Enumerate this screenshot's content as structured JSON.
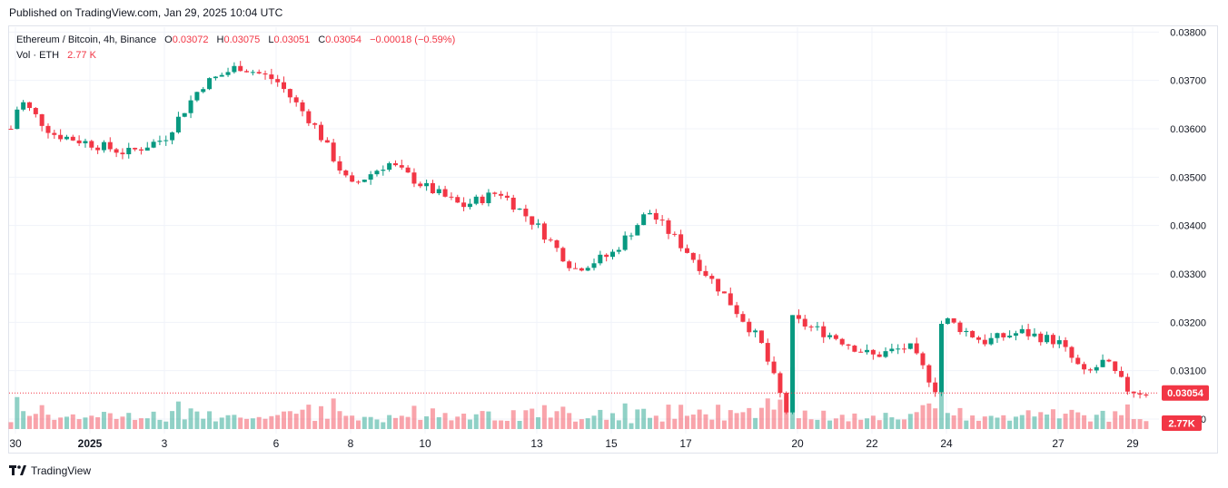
{
  "published": "Published on TradingView.com, Jan 29, 2025 10:04 UTC",
  "legend": {
    "symbol": "Ethereum / Bitcoin, 4h, Binance",
    "o_label": "O",
    "o": "0.03072",
    "h_label": "H",
    "h": "0.03075",
    "l_label": "L",
    "l": "0.03051",
    "c_label": "C",
    "c": "0.03054",
    "change": "−0.00018 (−0.59%)",
    "vol_label": "Vol · ETH",
    "vol": "2.77 K"
  },
  "footer": {
    "brand": "TradingView",
    "icon": "tradingview-logo-icon"
  },
  "colors": {
    "up": "#089981",
    "down": "#f23645",
    "grid": "#f0f3fa",
    "text": "#131722"
  },
  "chart_data": {
    "type": "candlestick",
    "ylim": [
      0.0297,
      0.0381
    ],
    "y_ticks": [
      "0.03800",
      "0.03700",
      "0.03600",
      "0.03500",
      "0.03400",
      "0.03300",
      "0.03200",
      "0.03100",
      "0.03000"
    ],
    "x_ticks": [
      "30",
      "2025",
      "3",
      "6",
      "8",
      "10",
      "13",
      "15",
      "17",
      "20",
      "22",
      "24",
      "27",
      "29"
    ],
    "last_price": "0.03054",
    "last_volume": "2.77K",
    "grid": true,
    "ohlc_close_path": [
      {
        "date": "2024-12-30",
        "value": 0.036
      },
      {
        "date": "2024-12-30",
        "value": 0.0366
      },
      {
        "date": "2024-12-31",
        "value": 0.0359
      },
      {
        "date": "2025-01-01",
        "value": 0.0357
      },
      {
        "date": "2025-01-02",
        "value": 0.0355
      },
      {
        "date": "2025-01-03",
        "value": 0.0358
      },
      {
        "date": "2025-01-04",
        "value": 0.0369
      },
      {
        "date": "2025-01-05",
        "value": 0.0373
      },
      {
        "date": "2025-01-06",
        "value": 0.037
      },
      {
        "date": "2025-01-07",
        "value": 0.0361
      },
      {
        "date": "2025-01-08",
        "value": 0.0348
      },
      {
        "date": "2025-01-09",
        "value": 0.0353
      },
      {
        "date": "2025-01-10",
        "value": 0.0348
      },
      {
        "date": "2025-01-11",
        "value": 0.0344
      },
      {
        "date": "2025-01-12",
        "value": 0.0347
      },
      {
        "date": "2025-01-13",
        "value": 0.034
      },
      {
        "date": "2025-01-14",
        "value": 0.0331
      },
      {
        "date": "2025-01-15",
        "value": 0.0334
      },
      {
        "date": "2025-01-16",
        "value": 0.0343
      },
      {
        "date": "2025-01-17",
        "value": 0.0335
      },
      {
        "date": "2025-01-18",
        "value": 0.0326
      },
      {
        "date": "2025-01-19",
        "value": 0.0316
      },
      {
        "date": "2025-01-20",
        "value": 0.0301
      },
      {
        "date": "2025-01-20",
        "value": 0.0321
      },
      {
        "date": "2025-01-21",
        "value": 0.0317
      },
      {
        "date": "2025-01-22",
        "value": 0.0313
      },
      {
        "date": "2025-01-23",
        "value": 0.0315
      },
      {
        "date": "2025-01-24",
        "value": 0.0306
      },
      {
        "date": "2025-01-24",
        "value": 0.0321
      },
      {
        "date": "2025-01-25",
        "value": 0.0316
      },
      {
        "date": "2025-01-26",
        "value": 0.0318
      },
      {
        "date": "2025-01-27",
        "value": 0.0316
      },
      {
        "date": "2025-01-28",
        "value": 0.0309
      },
      {
        "date": "2025-01-28",
        "value": 0.0312
      },
      {
        "date": "2025-01-29",
        "value": 0.0306
      },
      {
        "date": "2025-01-29",
        "value": 0.03054
      }
    ]
  }
}
